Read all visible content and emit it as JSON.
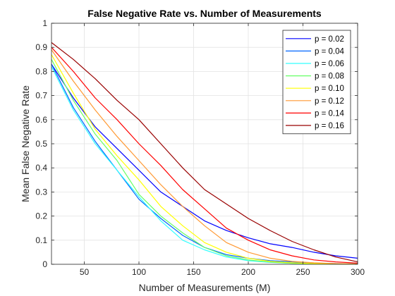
{
  "chart_data": {
    "type": "line",
    "title": "False Negative Rate vs. Number of Measurements",
    "xlabel": "Number of Measurements (M)",
    "ylabel": "Mean False Negative Rate",
    "xlim": [
      20,
      300
    ],
    "ylim": [
      0,
      1
    ],
    "xticks": [
      50,
      100,
      150,
      200,
      250,
      300
    ],
    "yticks": [
      0,
      0.1,
      0.2,
      0.3,
      0.4,
      0.5,
      0.6,
      0.7,
      0.8,
      0.9,
      1
    ],
    "xtick_labels": [
      "50",
      "100",
      "150",
      "200",
      "250",
      "300"
    ],
    "ytick_labels": [
      "0",
      "0.1",
      "0.2",
      "0.3",
      "0.4",
      "0.5",
      "0.6",
      "0.7",
      "0.8",
      "0.9",
      "1"
    ],
    "grid": true,
    "legend_location": "top-right",
    "x": [
      20,
      40,
      60,
      80,
      100,
      120,
      140,
      160,
      180,
      200,
      220,
      240,
      260,
      280,
      300
    ],
    "series": [
      {
        "name": "p = 0.02",
        "color": "#0000ff",
        "values": [
          0.83,
          0.69,
          0.57,
          0.48,
          0.39,
          0.3,
          0.24,
          0.18,
          0.14,
          0.11,
          0.085,
          0.07,
          0.05,
          0.035,
          0.025
        ]
      },
      {
        "name": "p = 0.04",
        "color": "#0066ff",
        "values": [
          0.83,
          0.65,
          0.51,
          0.39,
          0.27,
          0.19,
          0.12,
          0.07,
          0.04,
          0.025,
          0.015,
          0.01,
          0.005,
          0.003,
          0.002
        ]
      },
      {
        "name": "p = 0.06",
        "color": "#33ffff",
        "values": [
          0.82,
          0.64,
          0.5,
          0.39,
          0.28,
          0.18,
          0.1,
          0.06,
          0.03,
          0.015,
          0.008,
          0.004,
          0.002,
          0.001,
          0.001
        ]
      },
      {
        "name": "p = 0.08",
        "color": "#66ff66",
        "values": [
          0.85,
          0.68,
          0.54,
          0.43,
          0.29,
          0.2,
          0.13,
          0.07,
          0.035,
          0.018,
          0.009,
          0.004,
          0.002,
          0.001,
          0.001
        ]
      },
      {
        "name": "p = 0.10",
        "color": "#ffff00",
        "values": [
          0.87,
          0.71,
          0.56,
          0.45,
          0.35,
          0.24,
          0.16,
          0.09,
          0.05,
          0.025,
          0.012,
          0.006,
          0.003,
          0.002,
          0.001
        ]
      },
      {
        "name": "p = 0.12",
        "color": "#ff9933",
        "values": [
          0.89,
          0.76,
          0.64,
          0.53,
          0.43,
          0.33,
          0.24,
          0.16,
          0.09,
          0.05,
          0.025,
          0.012,
          0.006,
          0.003,
          0.002
        ]
      },
      {
        "name": "p = 0.14",
        "color": "#ff0000",
        "values": [
          0.9,
          0.8,
          0.69,
          0.6,
          0.5,
          0.41,
          0.31,
          0.23,
          0.15,
          0.1,
          0.06,
          0.035,
          0.018,
          0.01,
          0.005
        ]
      },
      {
        "name": "p = 0.16",
        "color": "#990000",
        "values": [
          0.92,
          0.85,
          0.77,
          0.68,
          0.6,
          0.5,
          0.4,
          0.31,
          0.25,
          0.19,
          0.14,
          0.095,
          0.06,
          0.03,
          0.01
        ]
      }
    ]
  }
}
